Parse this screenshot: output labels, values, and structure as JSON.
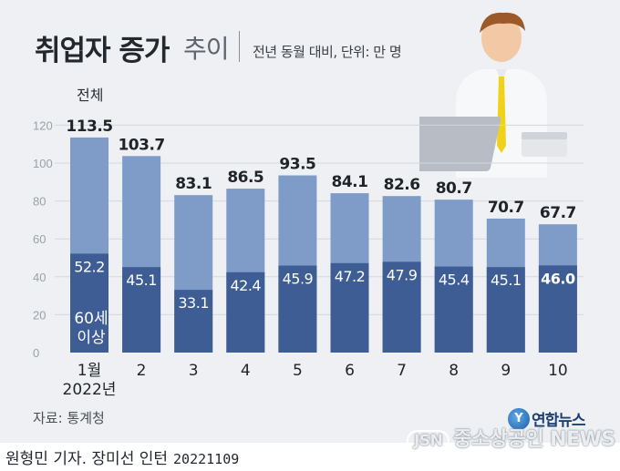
{
  "title": {
    "main": "취업자 증가",
    "sub": "추이",
    "unit": "전년 동월 대비, 단위: 만 명"
  },
  "labels": {
    "total": "전체",
    "age60": "60세 이상"
  },
  "source": "자료: 통계청",
  "credit": {
    "authors": "원형민 기자. 장미선 인턴",
    "date": "20221109"
  },
  "logo": {
    "icon": "yonhap-logo-icon",
    "text": "연합뉴스",
    "icon_letter": "Y"
  },
  "watermark": {
    "badge": "JSN",
    "text": "중소상공인 NEWS"
  },
  "colors": {
    "total_bar": "#7f9cc8",
    "age60_bar": "#3d5d94",
    "background": "#eef0f3"
  },
  "chart_data": {
    "type": "bar",
    "layout": "overlaid",
    "categories": [
      "1월\n2022년",
      "2",
      "3",
      "4",
      "5",
      "6",
      "7",
      "8",
      "9",
      "10"
    ],
    "series": [
      {
        "name": "전체",
        "values": [
          113.5,
          103.7,
          83.1,
          86.5,
          93.5,
          84.1,
          82.6,
          80.7,
          70.7,
          67.7
        ]
      },
      {
        "name": "60세 이상",
        "values": [
          52.2,
          45.1,
          33.1,
          42.4,
          45.9,
          47.2,
          47.9,
          45.4,
          45.1,
          46.0
        ]
      }
    ],
    "value_labels": {
      "total": [
        "113.5",
        "103.7",
        "83.1",
        "86.5",
        "93.5",
        "84.1",
        "82.6",
        "80.7",
        "70.7",
        "67.7"
      ],
      "age60": [
        "52.2",
        "45.1",
        "33.1",
        "42.4",
        "45.9",
        "47.2",
        "47.9",
        "45.4",
        "45.1",
        "46.0"
      ]
    },
    "yticks": [
      0,
      20,
      40,
      60,
      80,
      100,
      120
    ],
    "ylim": [
      0,
      125
    ],
    "grid": true,
    "title": "취업자 증가 추이",
    "xlabel": "",
    "ylabel": ""
  }
}
